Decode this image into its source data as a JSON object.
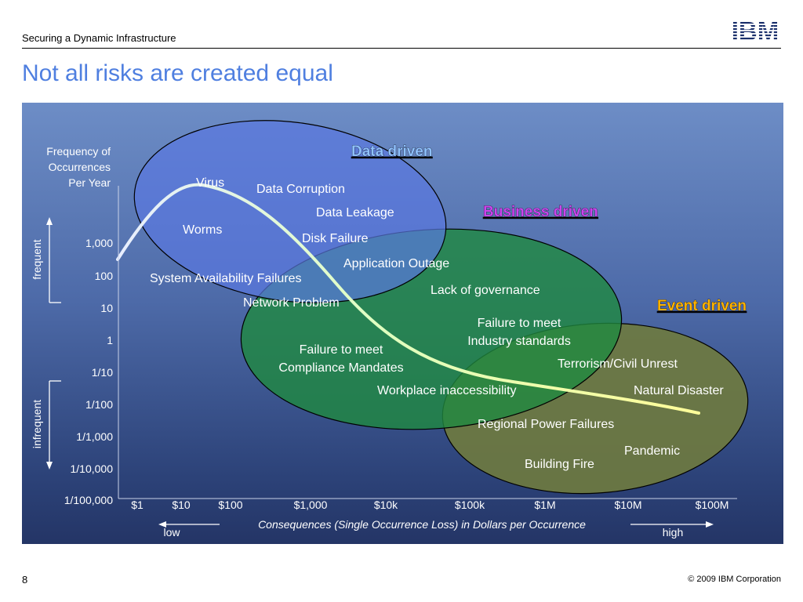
{
  "header": {
    "deck_title": "Securing a Dynamic Infrastructure",
    "logo": "IBM",
    "title": "Not all risks are created equal"
  },
  "footer": {
    "page_number": "8",
    "copyright": "© 2009 IBM Corporation"
  },
  "colors": {
    "data_driven": "#8fc1ff",
    "business_driven": "#cc44ee",
    "event_driven": "#ffb300",
    "data_ellipse_fill": "#5a78e0",
    "business_ellipse_fill": "#1f8a40",
    "event_ellipse_fill": "#6e7a40"
  },
  "categories": {
    "data_driven": "Data driven",
    "business_driven": "Business driven",
    "event_driven": "Event driven"
  },
  "axes": {
    "y_title_lines": [
      "Frequency of",
      "Occurrences",
      "Per Year"
    ],
    "y_ticks": [
      "1,000",
      "100",
      "10",
      "1",
      "1/10",
      "1/100",
      "1/1,000",
      "1/10,000",
      "1/100,000"
    ],
    "x_ticks": [
      "$1",
      "$10",
      "$100",
      "$1,000",
      "$10k",
      "$100k",
      "$1M",
      "$10M",
      "$100M"
    ],
    "x_title": "Consequences (Single Occurrence Loss) in Dollars per Occurrence",
    "frequent": "frequent",
    "infrequent": "infrequent",
    "low": "low",
    "high": "high"
  },
  "risks": {
    "virus": "Virus",
    "data_corruption": "Data Corruption",
    "data_leakage": "Data Leakage",
    "worms": "Worms",
    "disk_failure": "Disk Failure",
    "application_outage": "Application Outage",
    "system_availability": "System Availability Failures",
    "lack_of_governance": "Lack of governance",
    "network_problem": "Network Problem",
    "industry_standards_lines": [
      "Failure to meet",
      "Industry standards"
    ],
    "compliance_lines": [
      "Failure to meet",
      "Compliance Mandates"
    ],
    "terrorism": "Terrorism/Civil Unrest",
    "workplace": "Workplace inaccessibility",
    "natural_disaster": "Natural Disaster",
    "regional_power": "Regional Power Failures",
    "pandemic": "Pandemic",
    "building_fire": "Building Fire"
  }
}
